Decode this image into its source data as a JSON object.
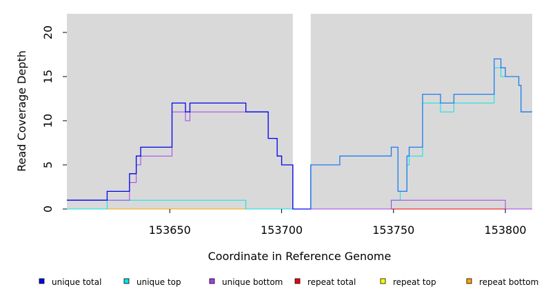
{
  "chart_data": {
    "type": "line",
    "step": true,
    "xlabel": "Coordinate in Reference Genome",
    "ylabel": "Read Coverage Depth",
    "xlim": [
      153604,
      153812
    ],
    "ylim": [
      0,
      22
    ],
    "x_ticks": [
      153650,
      153700,
      153750,
      153800
    ],
    "y_ticks": [
      0,
      5,
      10,
      15,
      20
    ],
    "grid": false,
    "background_color": "#d9d9d9",
    "gap_region": [
      153705,
      153713
    ],
    "legend_position": "bottom",
    "series": [
      {
        "name": "unique total",
        "color": "#0000ee",
        "color_after_gap": "#1e7bf0",
        "points": [
          [
            153604,
            1
          ],
          [
            153622,
            1
          ],
          [
            153622,
            2
          ],
          [
            153632,
            2
          ],
          [
            153632,
            4
          ],
          [
            153635,
            4
          ],
          [
            153635,
            6
          ],
          [
            153637,
            6
          ],
          [
            153637,
            7
          ],
          [
            153651,
            7
          ],
          [
            153651,
            12
          ],
          [
            153657,
            12
          ],
          [
            153657,
            11
          ],
          [
            153659,
            11
          ],
          [
            153659,
            12
          ],
          [
            153684,
            12
          ],
          [
            153684,
            11
          ],
          [
            153694,
            11
          ],
          [
            153694,
            8
          ],
          [
            153698,
            8
          ],
          [
            153698,
            6
          ],
          [
            153700,
            6
          ],
          [
            153700,
            5
          ],
          [
            153705,
            5
          ],
          [
            153705,
            0
          ],
          [
            153713,
            0
          ],
          [
            153713,
            5
          ],
          [
            153726,
            5
          ],
          [
            153726,
            6
          ],
          [
            153749,
            6
          ],
          [
            153749,
            7
          ],
          [
            153752,
            7
          ],
          [
            153752,
            2
          ],
          [
            153756,
            2
          ],
          [
            153756,
            6
          ],
          [
            153757,
            6
          ],
          [
            153757,
            7
          ],
          [
            153763,
            7
          ],
          [
            153763,
            13
          ],
          [
            153771,
            13
          ],
          [
            153771,
            12
          ],
          [
            153777,
            12
          ],
          [
            153777,
            13
          ],
          [
            153795,
            13
          ],
          [
            153795,
            17
          ],
          [
            153798,
            17
          ],
          [
            153798,
            16
          ],
          [
            153800,
            16
          ],
          [
            153800,
            15
          ],
          [
            153806,
            15
          ],
          [
            153806,
            14
          ],
          [
            153807,
            14
          ],
          [
            153807,
            11
          ],
          [
            153812,
            11
          ]
        ]
      },
      {
        "name": "unique top",
        "color": "#00e5e5",
        "points": [
          [
            153604,
            0
          ],
          [
            153622,
            0
          ],
          [
            153622,
            1
          ],
          [
            153684,
            1
          ],
          [
            153684,
            0
          ],
          [
            153705,
            0
          ],
          [
            153713,
            0
          ],
          [
            153749,
            0
          ],
          [
            153749,
            1
          ],
          [
            153753,
            1
          ],
          [
            153753,
            2
          ],
          [
            153756,
            2
          ],
          [
            153756,
            5
          ],
          [
            153757,
            5
          ],
          [
            153757,
            6
          ],
          [
            153763,
            6
          ],
          [
            153763,
            12
          ],
          [
            153771,
            12
          ],
          [
            153771,
            11
          ],
          [
            153777,
            11
          ],
          [
            153777,
            12
          ],
          [
            153795,
            12
          ],
          [
            153795,
            16
          ],
          [
            153798,
            16
          ],
          [
            153798,
            15
          ],
          [
            153806,
            15
          ],
          [
            153806,
            14
          ],
          [
            153807,
            14
          ],
          [
            153807,
            11
          ],
          [
            153812,
            11
          ]
        ]
      },
      {
        "name": "unique bottom",
        "color": "#a040ee",
        "points": [
          [
            153604,
            1
          ],
          [
            153632,
            1
          ],
          [
            153632,
            3
          ],
          [
            153635,
            3
          ],
          [
            153635,
            5
          ],
          [
            153637,
            5
          ],
          [
            153637,
            6
          ],
          [
            153651,
            6
          ],
          [
            153651,
            11
          ],
          [
            153657,
            11
          ],
          [
            153657,
            10
          ],
          [
            153659,
            10
          ],
          [
            153659,
            11
          ],
          [
            153684,
            11
          ],
          [
            153684,
            11
          ],
          [
            153694,
            11
          ],
          [
            153694,
            8
          ],
          [
            153698,
            8
          ],
          [
            153698,
            6
          ],
          [
            153700,
            6
          ],
          [
            153700,
            5
          ],
          [
            153705,
            5
          ],
          [
            153705,
            0
          ],
          [
            153713,
            0
          ],
          [
            153749,
            0
          ],
          [
            153749,
            1
          ],
          [
            153800,
            1
          ],
          [
            153800,
            0
          ],
          [
            153812,
            0
          ]
        ]
      },
      {
        "name": "repeat total",
        "color": "#ee0000",
        "points": [
          [
            153713,
            0
          ],
          [
            153812,
            0
          ]
        ]
      },
      {
        "name": "repeat top",
        "color": "#ffff00",
        "points": []
      },
      {
        "name": "repeat bottom",
        "color": "#ffa500",
        "points": [
          [
            153604,
            0
          ],
          [
            153705,
            0
          ]
        ]
      }
    ]
  }
}
